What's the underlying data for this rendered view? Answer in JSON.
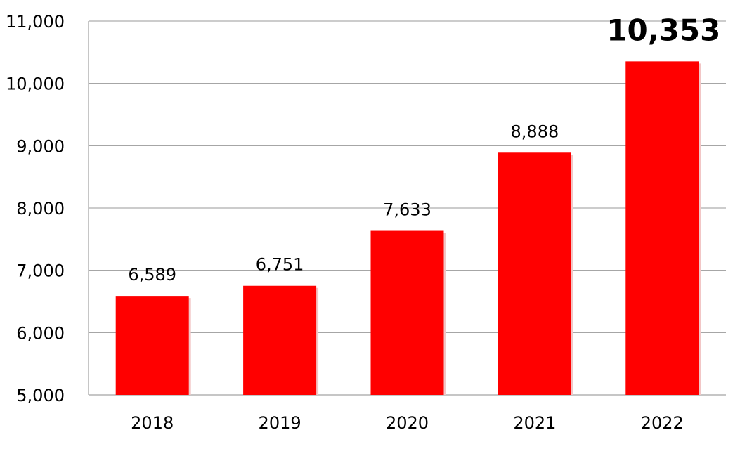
{
  "chart_data": {
    "type": "bar",
    "title": "",
    "xlabel": "",
    "ylabel": "",
    "categories": [
      "2018",
      "2019",
      "2020",
      "2021",
      "2022"
    ],
    "values": [
      6589,
      6751,
      7633,
      8888,
      10353
    ],
    "data_labels": [
      "6,589",
      "6,751",
      "7,633",
      "8,888",
      "10,353"
    ],
    "highlighted_label_index": 4,
    "ylim": [
      5000,
      11000
    ],
    "yticks": [
      5000,
      6000,
      7000,
      8000,
      9000,
      10000,
      11000
    ],
    "ytick_labels": [
      "5,000",
      "6,000",
      "7,000",
      "8,000",
      "9,000",
      "10,000",
      "11,000"
    ],
    "grid": true,
    "legend": "none",
    "colors": {
      "bar": "#ff0000",
      "bar_shadow": "#f2c6c6",
      "grid": "#9a9a9a",
      "axis": "#8c8c8c",
      "text": "#000000"
    }
  }
}
